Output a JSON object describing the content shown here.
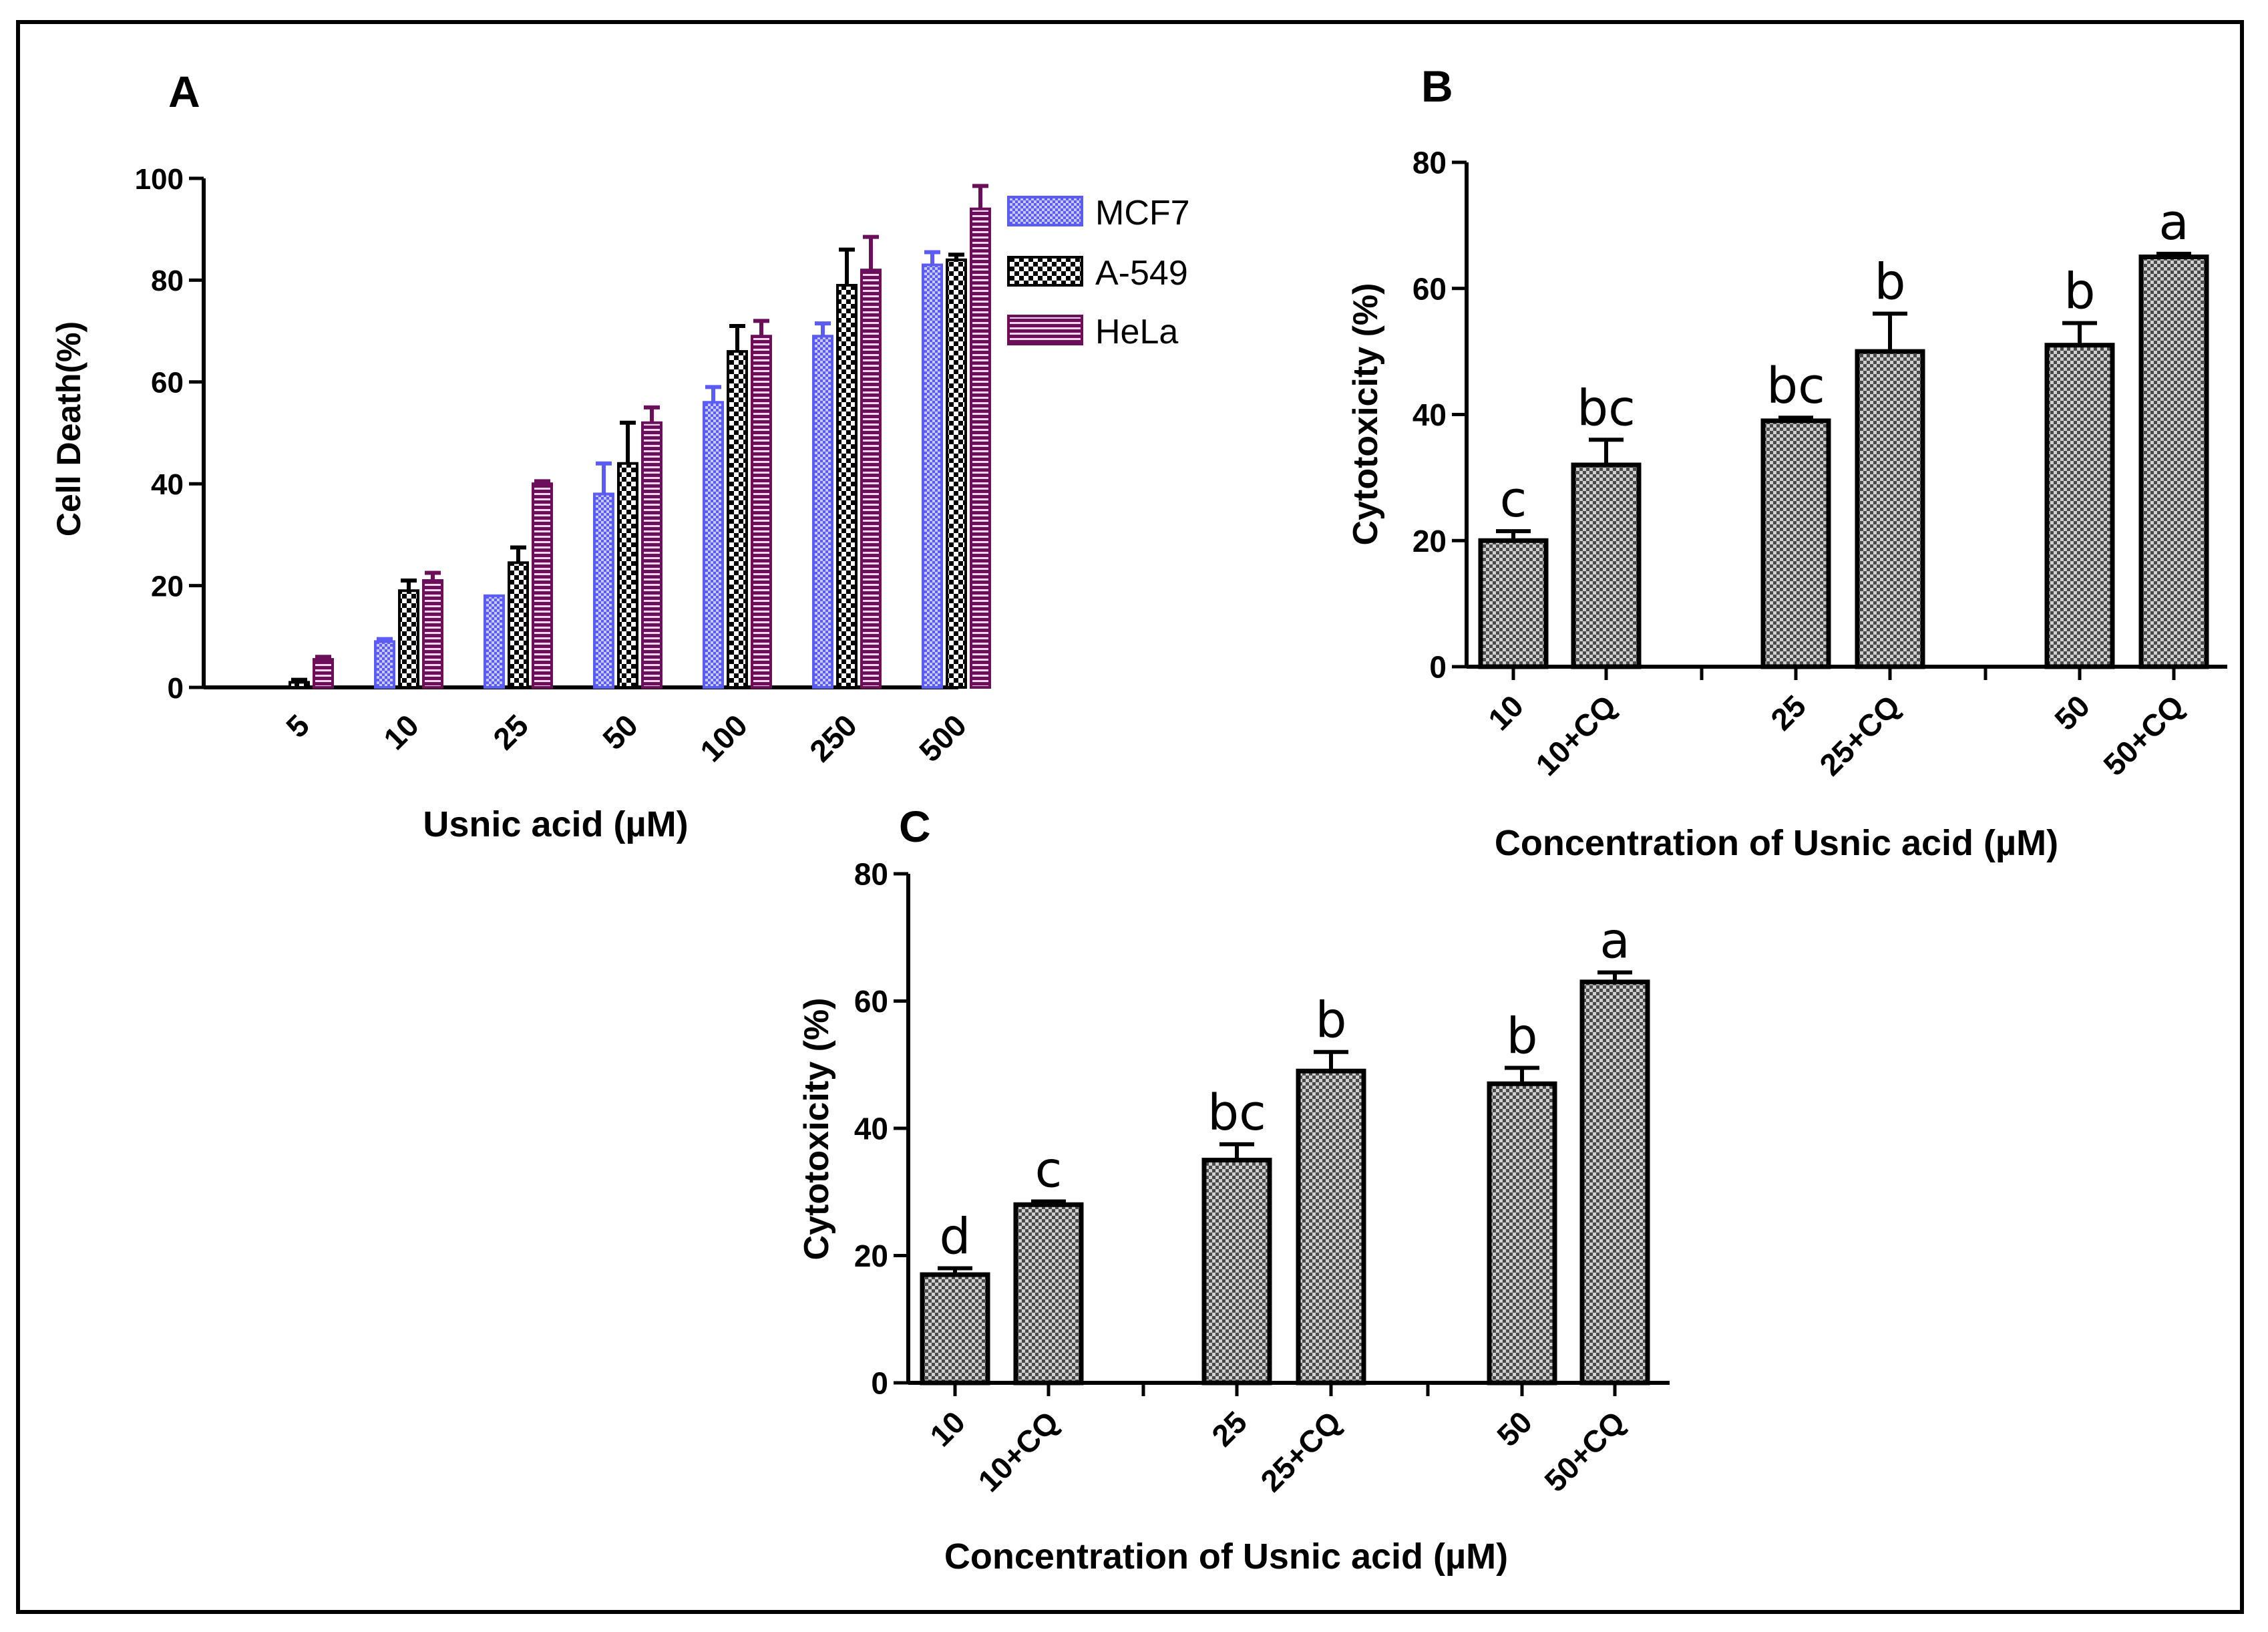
{
  "colors": {
    "mcf7": "#5b5bf5",
    "a549": "#000000",
    "hela": "#6b0f5a",
    "gray_bar": "#808080"
  },
  "chart_data": [
    {
      "panel": "A",
      "type": "bar",
      "ylabel": "Cell Death(%)",
      "xlabel": "Usnic acid (µM)",
      "ylim": [
        0,
        100
      ],
      "yticks": [
        "0",
        "20",
        "40",
        "60",
        "80",
        "100"
      ],
      "categories": [
        "5",
        "10",
        "25",
        "50",
        "100",
        "250",
        "500"
      ],
      "legend": [
        "MCF7",
        "A-549",
        "HeLa"
      ],
      "legend_position": "right",
      "series": [
        {
          "name": "MCF7",
          "values": [
            0,
            9,
            18,
            38,
            56,
            69,
            83
          ],
          "errors": [
            0,
            0.5,
            0,
            6,
            3,
            2.5,
            2.5
          ]
        },
        {
          "name": "A-549",
          "values": [
            1,
            19,
            24.5,
            44,
            66,
            79,
            84
          ],
          "errors": [
            0.5,
            2,
            3,
            8,
            5,
            7,
            1
          ]
        },
        {
          "name": "HeLa",
          "values": [
            5.5,
            21,
            40,
            52,
            69,
            82,
            94
          ],
          "errors": [
            0.5,
            1.5,
            0.5,
            3,
            3,
            6.5,
            4.5
          ]
        }
      ]
    },
    {
      "panel": "B",
      "type": "bar",
      "ylabel": "Cytotoxicity (%)",
      "xlabel": "Concentration of Usnic acid (µM)",
      "ylim": [
        0,
        80
      ],
      "yticks": [
        "0",
        "20",
        "40",
        "60",
        "80"
      ],
      "categories": [
        "10",
        "10+CQ",
        "25",
        "25+CQ",
        "50",
        "50+CQ"
      ],
      "values": [
        20,
        32,
        39,
        50,
        51,
        65
      ],
      "errors": [
        1.5,
        4,
        0.5,
        6,
        3.5,
        0.5
      ],
      "significance": [
        "c",
        "bc",
        "bc",
        "b",
        "b",
        "a"
      ]
    },
    {
      "panel": "C",
      "type": "bar",
      "ylabel": "Cytotoxicity (%)",
      "xlabel": "Concentration of Usnic acid (µM)",
      "ylim": [
        0,
        80
      ],
      "yticks": [
        "0",
        "20",
        "40",
        "60",
        "80"
      ],
      "categories": [
        "10",
        "10+CQ",
        "25",
        "25+CQ",
        "50",
        "50+CQ"
      ],
      "values": [
        17,
        28,
        35,
        49,
        47,
        63
      ],
      "errors": [
        1,
        0.5,
        2.5,
        3,
        2.5,
        1.5
      ],
      "significance": [
        "d",
        "c",
        "bc",
        "b",
        "b",
        "a"
      ]
    }
  ]
}
